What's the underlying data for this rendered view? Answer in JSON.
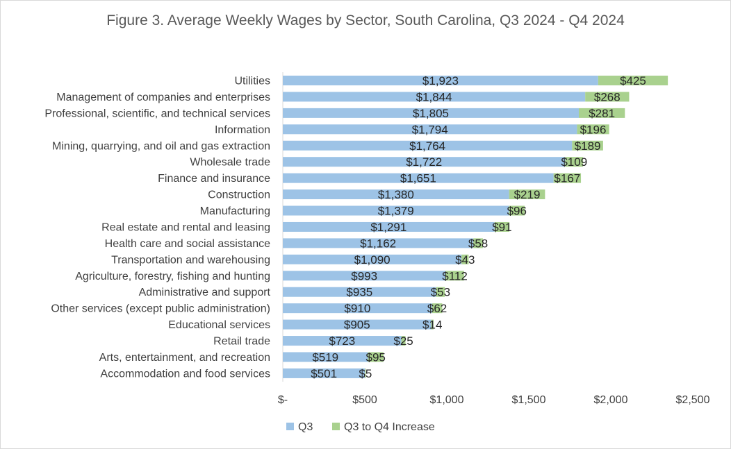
{
  "chart_data": {
    "type": "bar",
    "orientation": "horizontal",
    "stacked": true,
    "title": "Figure 3. Average Weekly Wages by Sector, South Carolina, Q3 2024 - Q4 2024",
    "categories": [
      "Utilities",
      "Management of companies and enterprises",
      "Professional, scientific, and technical services",
      "Information",
      "Mining, quarrying, and oil and gas extraction",
      "Wholesale trade",
      "Finance and insurance",
      "Construction",
      "Manufacturing",
      "Real estate and rental and leasing",
      "Health care and social assistance",
      "Transportation and warehousing",
      "Agriculture, forestry, fishing and hunting",
      "Administrative and support",
      "Other services (except public administration)",
      "Educational services",
      "Retail trade",
      "Arts, entertainment, and recreation",
      "Accommodation and food services"
    ],
    "series": [
      {
        "name": "Q3",
        "color": "#9dc3e6",
        "values": [
          1923,
          1844,
          1805,
          1794,
          1764,
          1722,
          1651,
          1380,
          1379,
          1291,
          1162,
          1090,
          993,
          935,
          910,
          905,
          723,
          519,
          501
        ],
        "labels": [
          "$1,923",
          "$1,844",
          "$1,805",
          "$1,794",
          "$1,764",
          "$1,722",
          "$1,651",
          "$1,380",
          "$1,379",
          "$1,291",
          "$1,162",
          "$1,090",
          "$993",
          "$935",
          "$910",
          "$905",
          "$723",
          "$519",
          "$501"
        ]
      },
      {
        "name": "Q3 to Q4 Increase",
        "color": "#a9d18e",
        "values": [
          425,
          268,
          281,
          196,
          189,
          109,
          167,
          219,
          96,
          91,
          58,
          43,
          112,
          53,
          62,
          14,
          25,
          95,
          5
        ],
        "labels": [
          "$425",
          "$268",
          "$281",
          "$196",
          "$189",
          "$109",
          "$167",
          "$219",
          "$96",
          "$91",
          "$58",
          "$43",
          "$112",
          "$53",
          "$62",
          "$14",
          "$25",
          "$95",
          "$5"
        ]
      }
    ],
    "xlim": [
      0,
      2500
    ],
    "x_ticks": [
      0,
      500,
      1000,
      1500,
      2000,
      2500
    ],
    "x_tick_labels": [
      "$-",
      "$500",
      "$1,000",
      "$1,500",
      "$2,000",
      "$2,500"
    ],
    "xlabel": "",
    "ylabel": "",
    "grid": false,
    "legend_position": "bottom"
  }
}
